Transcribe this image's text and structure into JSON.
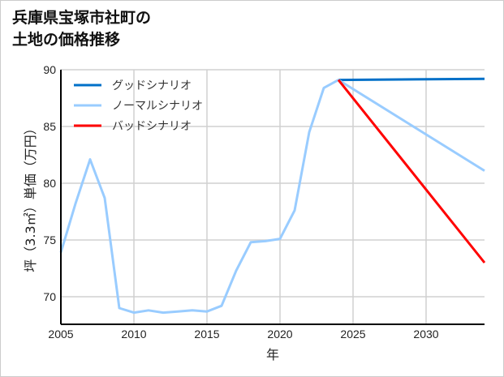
{
  "chart_data": {
    "type": "line",
    "title": [
      "兵庫県宝塚市社町の",
      "土地の価格推移"
    ],
    "xlabel": "年",
    "ylabel": "坪（3.3㎡）単価（万円）",
    "xlim": [
      2005,
      2034
    ],
    "ylim": [
      67.6,
      90
    ],
    "xticks": [
      2005,
      2010,
      2015,
      2020,
      2025,
      2030
    ],
    "yticks": [
      70,
      75,
      80,
      85,
      90
    ],
    "grid": true,
    "legend_position": "top-left",
    "series": [
      {
        "name": "グッドシナリオ",
        "color": "#0070c8",
        "x": [
          2024,
          2034
        ],
        "values": [
          89.1,
          89.2
        ]
      },
      {
        "name": "ノーマルシナリオ",
        "color": "#99ccff",
        "x": [
          2005,
          2006,
          2007,
          2008,
          2009,
          2010,
          2011,
          2012,
          2013,
          2014,
          2015,
          2016,
          2017,
          2018,
          2019,
          2020,
          2021,
          2022,
          2023,
          2024,
          2034
        ],
        "values": [
          73.9,
          78.2,
          82.1,
          78.7,
          69.0,
          68.6,
          68.8,
          68.6,
          68.7,
          68.8,
          68.7,
          69.2,
          72.3,
          74.8,
          74.9,
          75.1,
          77.6,
          84.5,
          88.4,
          89.1,
          81.1
        ]
      },
      {
        "name": "バッドシナリオ",
        "color": "#ff0000",
        "x": [
          2024,
          2034
        ],
        "values": [
          89.1,
          73.0
        ]
      }
    ]
  }
}
